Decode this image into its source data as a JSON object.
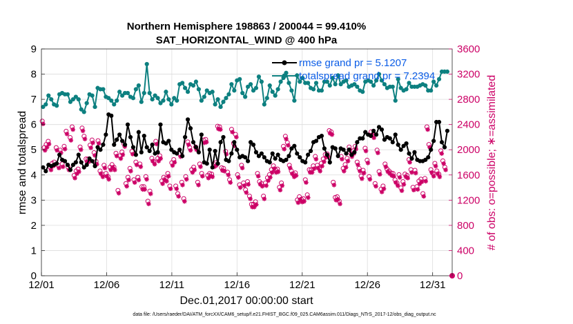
{
  "chart_data": {
    "type": "line",
    "title": "Northern Hemisphere 198863 / 200044 = 99.410%",
    "subtitle": "SAT_HORIZONTAL_WIND @ 400 hPa",
    "xlabel": "Dec.01,2017 00:00:00 start",
    "ylabel": "rmse and totalspread",
    "y2label": "# of obs: o=possible; ∗=assimilated",
    "footnote": "data file: /Users/raeder/DAI/ATM_forcXX/CAM6_setup/f.e21.FHIST_BGC.f09_025.CAM6assim.011/Diags_NTrS_2017-12/obs_diag_output.nc",
    "xlim": [
      0,
      31.5
    ],
    "ylim": [
      0,
      9
    ],
    "y2lim": [
      0,
      3600
    ],
    "x_ticks": [
      0,
      5,
      10,
      15,
      20,
      25,
      30
    ],
    "x_tick_labels": [
      "12/01",
      "12/06",
      "12/11",
      "12/16",
      "12/21",
      "12/26",
      "12/31"
    ],
    "y_ticks": [
      0,
      1,
      2,
      3,
      4,
      5,
      6,
      7,
      8,
      9
    ],
    "y2_ticks": [
      0,
      400,
      800,
      1200,
      1600,
      2000,
      2400,
      2800,
      3200,
      3600
    ],
    "grid": true,
    "legend_position": "top-right",
    "colors": {
      "rmse": "#000000",
      "totalspread": "#0d8080",
      "obs": "#cc0066",
      "legend_text": "#0a5ce6",
      "right_axis": "#cc0066"
    },
    "series": [
      {
        "name": "rmse grand pr = 5.1207",
        "values": [
          4.3,
          4.15,
          4.4,
          4.35,
          4.4,
          4.45,
          4.8,
          4.6,
          4.55,
          4.4,
          4.2,
          4.4,
          4.5,
          4.8,
          4.5,
          4.3,
          4.4,
          4.65,
          4.55,
          4.35,
          5.1,
          5.0,
          5.2,
          5.6,
          6.4,
          6.35,
          5.2,
          5.4,
          5.6,
          5.35,
          5.2,
          6.0,
          5.5,
          5.1,
          4.8,
          5.7,
          4.9,
          5.55,
          5.1,
          4.95,
          5.2,
          4.85,
          4.9,
          6.0,
          5.3,
          5.25,
          5.35,
          5.0,
          4.9,
          4.85,
          5.0,
          4.75,
          5.5,
          6.2,
          5.85,
          5.3,
          5.1,
          4.9,
          5.6,
          4.5,
          4.45,
          5.0,
          4.3,
          4.95,
          4.45,
          5.3,
          5.5,
          4.6,
          4.55,
          4.85,
          5.3,
          5.0,
          4.7,
          4.75,
          4.7,
          4.55,
          5.3,
          5.2,
          4.9,
          4.75,
          4.85,
          4.7,
          4.55,
          4.5,
          4.85,
          4.65,
          4.8,
          4.6,
          4.55,
          4.6,
          4.75,
          5.05,
          5.15,
          4.85,
          4.7,
          4.55,
          4.5,
          4.8,
          4.95,
          5.3,
          5.35,
          5.5,
          5.55,
          5.05,
          4.8,
          4.5,
          5.1,
          5.05,
          4.75,
          5.05,
          5.0,
          4.85,
          5.0,
          4.8,
          4.9,
          5.3,
          5.45,
          5.45,
          5.7,
          5.6,
          5.55,
          5.75,
          5.6,
          5.9,
          5.8,
          5.4,
          5.5,
          5.45,
          5.3,
          5.6,
          5.2,
          5.0,
          5.15,
          5.25,
          4.85,
          4.65,
          4.9,
          4.6,
          4.55,
          4.55,
          4.6,
          4.7,
          5.0,
          5.35,
          6.1,
          6.1,
          5.3,
          5.1,
          5.75
        ]
      },
      {
        "name": "totalspread grand pr = 7.2394",
        "values": [
          6.7,
          6.8,
          7.15,
          7.0,
          6.8,
          6.75,
          7.2,
          7.25,
          7.2,
          7.2,
          6.9,
          7.0,
          7.1,
          7.0,
          6.6,
          6.5,
          6.85,
          7.2,
          7.15,
          6.7,
          7.45,
          7.4,
          7.4,
          7.1,
          7.05,
          6.95,
          6.8,
          6.95,
          7.3,
          7.15,
          7.25,
          7.25,
          7.1,
          7.05,
          7.4,
          7.55,
          6.9,
          7.25,
          8.4,
          7.25,
          7.0,
          7.15,
          7.05,
          6.85,
          6.95,
          7.3,
          7.0,
          6.8,
          7.05,
          6.95,
          7.6,
          7.65,
          7.45,
          7.3,
          7.6,
          7.55,
          7.7,
          7.4,
          6.95,
          7.1,
          7.35,
          7.25,
          7.3,
          6.8,
          7.0,
          6.7,
          6.9,
          7.05,
          7.2,
          7.6,
          7.35,
          7.75,
          7.8,
          7.25,
          7.1,
          7.5,
          7.6,
          7.35,
          7.45,
          7.9,
          7.7,
          6.8,
          7.05,
          7.55,
          7.3,
          7.15,
          7.4,
          7.7,
          7.85,
          8.05,
          7.65,
          7.35,
          6.95,
          7.95,
          7.7,
          7.85,
          7.65,
          7.65,
          7.45,
          7.4,
          7.65,
          7.35,
          7.35,
          7.7,
          7.7,
          7.55,
          7.85,
          7.6,
          7.95,
          7.6,
          7.7,
          7.75,
          7.5,
          7.55,
          7.6,
          7.5,
          7.35,
          7.3,
          7.7,
          7.75,
          7.7,
          7.55,
          7.75,
          8.0,
          7.75,
          7.6,
          7.45,
          7.5,
          7.5,
          6.95,
          7.8,
          7.45,
          7.35,
          7.4,
          7.65,
          7.5,
          7.5,
          7.5,
          7.55,
          7.6,
          7.55,
          7.35,
          7.35,
          7.7,
          7.55,
          7.8,
          8.1,
          8.1,
          8.1
        ]
      },
      {
        "name": "",
        "axis": "right",
        "marker": "o",
        "values": [
          2410,
          1990,
          2040,
          2090,
          1680,
          1740,
          1760,
          1990,
          1710,
          1950,
          1730,
          2010,
          2250,
          1680,
          2150,
          2320,
          1550,
          1620,
          1650,
          2000,
          2300,
          2170,
          1810,
          1810,
          2030,
          2110,
          1910,
          1770,
          2100,
          1620,
          1570,
          1710,
          1580,
          1530,
          1680,
          1720,
          1680,
          1900,
          1310,
          1860,
          1920,
          2050,
          1420,
          1520,
          1660,
          1930,
          1480,
          1760,
          1520,
          1730,
          1370,
          1370,
          1530,
          1140,
          1300,
          1820,
          1770,
          2090,
          1820,
          1860,
          1460,
          1520,
          1500,
          1580,
          1380,
          1750,
          1800,
          1380,
          1260,
          1890,
          1440,
          1180,
          1530,
          2080,
          1990,
          1640,
          1680,
          2000,
          1440,
          1730,
          1580,
          2110,
          2120,
          1550,
          1580,
          1570,
          1730,
          1750,
          2330,
          2320,
          1670,
          1660,
          1930,
          1600,
          1480,
          2280,
          2060,
          2200,
          1560,
          1400,
          1710,
          1430,
          1320,
          1450,
          1220,
          1090,
          1090,
          1130,
          1580,
          1450,
          1420,
          1220,
          1430,
          1510,
          1560,
          1640,
          1700,
          1640,
          1650,
          1360,
          1430,
          2010,
          2170,
          2070,
          1710,
          1620,
          1570,
          1590,
          1160,
          1210,
          1170,
          1180,
          1480,
          1240,
          1640,
          1640,
          1700,
          1850,
          1710,
          1660,
          1740,
          1810,
          1880,
          1890,
          2260,
          2240,
          1440,
          1200,
          1210,
          1140,
          1850,
          1660,
          1720,
          1820,
          2000,
          1890,
          1940,
          2010,
          1760,
          1660,
          1540,
          1630,
          1980,
          1790,
          1530,
          2240,
          2190,
          1420,
          1950,
          1610,
          1330,
          1380,
          1730,
          1650,
          1620,
          1590,
          1580,
          1480,
          1430,
          1560,
          1350,
          1450,
          1570,
          1550,
          1800,
          1640,
          1360,
          1630,
          1370,
          1460,
          1490,
          1260,
          1500,
          2320,
          2040,
          1640,
          1580,
          1740,
          1620,
          1570,
          1940,
          1780,
          1680
        ]
      },
      {
        "name": "",
        "axis": "right",
        "marker": "*",
        "values": [
          2410,
          1990,
          2040,
          2090,
          1680,
          1740,
          1760,
          1990,
          1710,
          1950,
          1730,
          2010,
          2250,
          1680,
          2150,
          2320,
          1550,
          1620,
          1650,
          2000,
          2300,
          2170,
          1810,
          1810,
          2030,
          2110,
          1910,
          1770,
          2100,
          1620,
          1570,
          1710,
          1580,
          1530,
          1680,
          1720,
          1680,
          1900,
          1310,
          1860,
          1920,
          2050,
          1420,
          1520,
          1660,
          1930,
          1480,
          1760,
          1520,
          1730,
          1370,
          1370,
          1530,
          1140,
          1300,
          1820,
          1770,
          2090,
          1820,
          1860,
          1460,
          1520,
          1500,
          1580,
          1380,
          1750,
          1800,
          1380,
          1260,
          1890,
          1440,
          1180,
          1530,
          2080,
          1990,
          1640,
          1680,
          2000,
          1440,
          1730,
          1580,
          2110,
          2120,
          1550,
          1580,
          1570,
          1730,
          1750,
          2330,
          2320,
          1670,
          1660,
          1930,
          1600,
          1480,
          2280,
          2060,
          2200,
          1560,
          1400,
          1710,
          1430,
          1320,
          1450,
          1220,
          1090,
          1090,
          1130,
          1580,
          1450,
          1420,
          1220,
          1430,
          1510,
          1560,
          1640,
          1700,
          1640,
          1650,
          1360,
          1430,
          2010,
          2170,
          2070,
          1710,
          1620,
          1570,
          1590,
          1160,
          1210,
          1170,
          1180,
          1480,
          1240,
          1640,
          1640,
          1700,
          1850,
          1710,
          1660,
          1740,
          1810,
          1880,
          1890,
          2260,
          2240,
          1440,
          1200,
          1210,
          1140,
          1850,
          1660,
          1720,
          1820,
          2000,
          1890,
          1940,
          2010,
          1760,
          1660,
          1540,
          1630,
          1980,
          1790,
          1530,
          2240,
          2190,
          1420,
          1950,
          1610,
          1330,
          1380,
          1730,
          1650,
          1620,
          1590,
          1580,
          1480,
          1430,
          1560,
          1350,
          1450,
          1570,
          1550,
          1800,
          1640,
          1360,
          1630,
          1370,
          1460,
          1490,
          1260,
          1500,
          2320,
          2040,
          1640,
          1580,
          1740,
          1620,
          1570,
          1940,
          1780,
          1680
        ]
      }
    ]
  }
}
